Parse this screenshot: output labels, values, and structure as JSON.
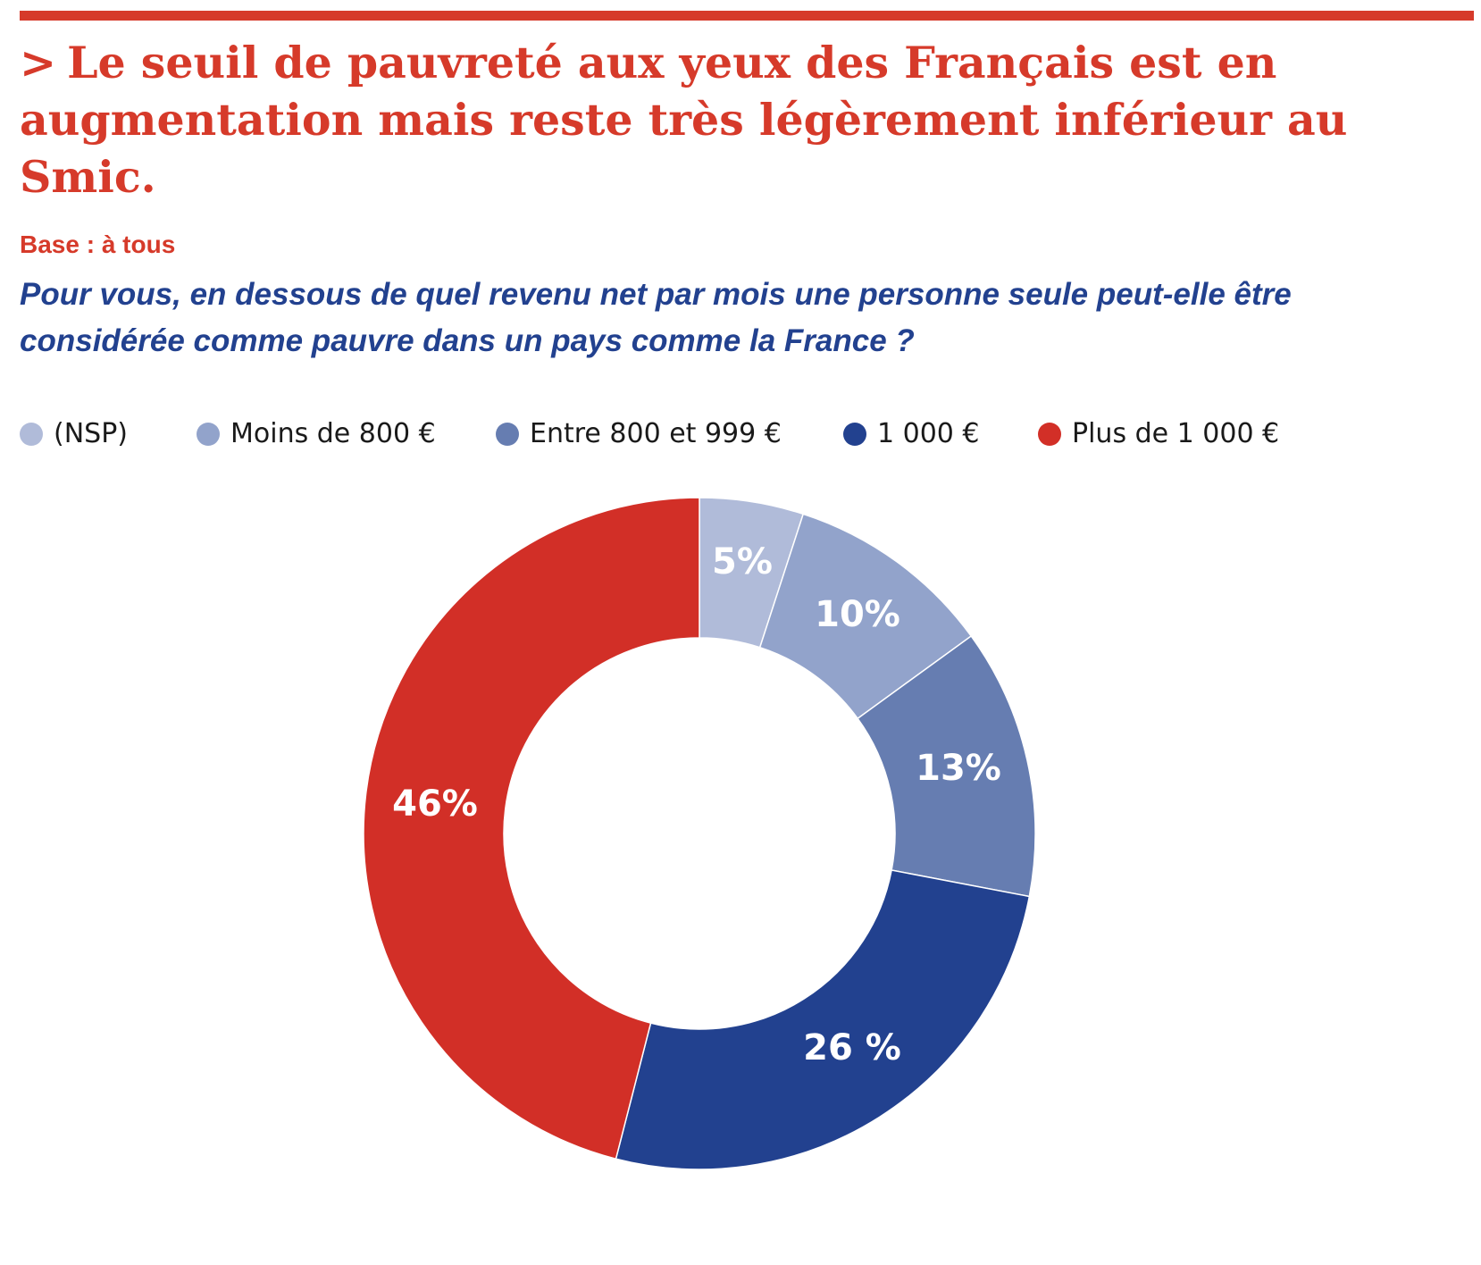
{
  "header": {
    "chevron": ">",
    "headline": "Le seuil de pauvreté aux yeux des Français est en augmentation mais reste très légèrement inférieur au Smic.",
    "base": "Base : à tous",
    "question": "Pour vous, en dessous de quel revenu net par mois une personne seule peut-elle être considérée comme pauvre dans un pays comme la France ?"
  },
  "colors": {
    "accent": "#d63a2a",
    "question": "#22418f"
  },
  "chart_data": {
    "type": "pie",
    "variant": "donut",
    "title": "",
    "start": "12 o'clock, clockwise",
    "slices": [
      {
        "label": "(NSP)",
        "value": 5,
        "display": "5%",
        "color": "#b0bbd9"
      },
      {
        "label": "Moins de 800 €",
        "value": 10,
        "display": "10%",
        "color": "#92a3cb"
      },
      {
        "label": "Entre 800 et 999 €",
        "value": 13,
        "display": "13%",
        "color": "#667db1"
      },
      {
        "label": "1 000 €",
        "value": 26,
        "display": "26 %",
        "color": "#22418f"
      },
      {
        "label": "Plus de 1 000 €",
        "value": 46,
        "display": "46%",
        "color": "#d22f27"
      }
    ]
  }
}
